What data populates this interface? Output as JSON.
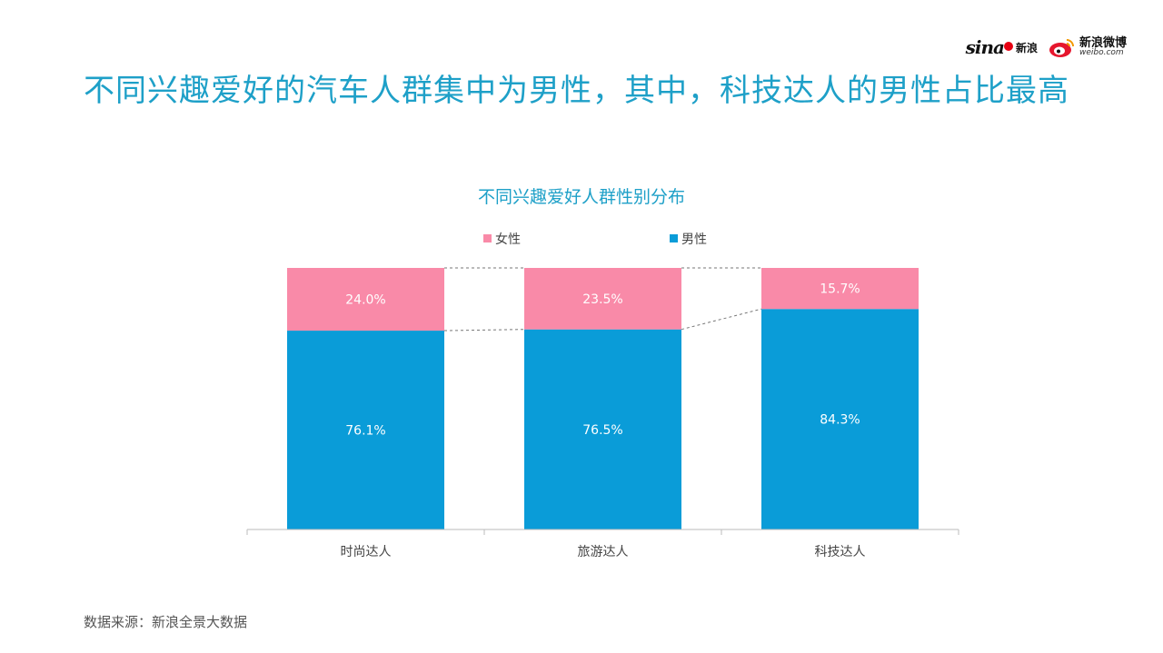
{
  "branding": {
    "sina_mark": "sina",
    "sina_label": "新浪",
    "weibo_label": "新浪微博",
    "weibo_url": "weibo.com"
  },
  "headline": "不同兴趣爱好的汽车人群集中为男性，其中，科技达人的男性占比最高",
  "chart_data": {
    "type": "bar",
    "stacked": true,
    "title": "不同兴趣爱好人群性别分布",
    "categories": [
      "时尚达人",
      "旅游达人",
      "科技达人"
    ],
    "series": [
      {
        "name": "男性",
        "values": [
          76.1,
          76.5,
          84.3
        ],
        "labels": [
          "76.1%",
          "76.5%",
          "84.3%"
        ],
        "color": "#0a9cd8"
      },
      {
        "name": "女性",
        "values": [
          24.0,
          23.5,
          15.7
        ],
        "labels": [
          "24.0%",
          "23.5%",
          "15.7%"
        ],
        "color": "#f98aa8"
      }
    ],
    "legend_order": [
      "女性",
      "男性"
    ],
    "legend_position": "top",
    "ylim": [
      0,
      100
    ],
    "connector_lines": true,
    "grid": false
  },
  "source": "数据来源：新浪全景大数据",
  "colors": {
    "accent": "#1ea0c8",
    "male": "#0a9cd8",
    "female": "#f98aa8"
  }
}
